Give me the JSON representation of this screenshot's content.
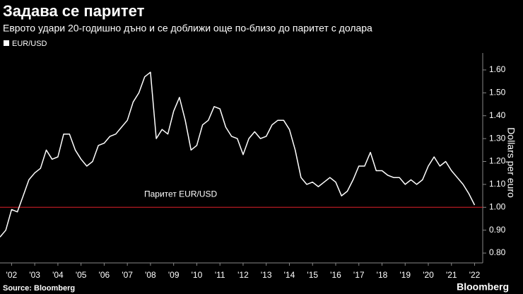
{
  "chart_data": {
    "type": "line",
    "title": "Задава се паритет",
    "subtitle": "Еврото удари 20-годишно дъно и се доближи още по-близо до паритет с долара",
    "y_axis_label": "Dollars per euro",
    "source": "Source: Bloomberg",
    "reference_line": {
      "value": 1.0,
      "label": "Паритет EUR/USD",
      "color": "#e0202a"
    },
    "x": [
      2002.0,
      2002.25,
      2002.5,
      2002.75,
      2003.0,
      2003.25,
      2003.5,
      2003.75,
      2004.0,
      2004.25,
      2004.5,
      2004.75,
      2005.0,
      2005.25,
      2005.5,
      2005.75,
      2006.0,
      2006.25,
      2006.5,
      2006.75,
      2007.0,
      2007.25,
      2007.5,
      2007.75,
      2008.0,
      2008.25,
      2008.5,
      2008.75,
      2009.0,
      2009.25,
      2009.5,
      2009.75,
      2010.0,
      2010.25,
      2010.5,
      2010.75,
      2011.0,
      2011.25,
      2011.5,
      2011.75,
      2012.0,
      2012.25,
      2012.5,
      2012.75,
      2013.0,
      2013.25,
      2013.5,
      2013.75,
      2014.0,
      2014.25,
      2014.5,
      2014.75,
      2015.0,
      2015.25,
      2015.5,
      2015.75,
      2016.0,
      2016.25,
      2016.5,
      2016.75,
      2017.0,
      2017.25,
      2017.5,
      2017.75,
      2018.0,
      2018.25,
      2018.5,
      2018.75,
      2019.0,
      2019.25,
      2019.5,
      2019.75,
      2020.0,
      2020.25,
      2020.5,
      2020.75,
      2021.0,
      2021.25,
      2021.5,
      2021.75,
      2022.0,
      2022.25,
      2022.5
    ],
    "series": [
      {
        "name": "EUR/USD",
        "color": "#ffffff",
        "values": [
          0.87,
          0.9,
          0.99,
          0.98,
          1.05,
          1.12,
          1.15,
          1.17,
          1.25,
          1.21,
          1.22,
          1.32,
          1.32,
          1.25,
          1.21,
          1.18,
          1.2,
          1.27,
          1.28,
          1.31,
          1.32,
          1.35,
          1.38,
          1.46,
          1.5,
          1.57,
          1.59,
          1.3,
          1.34,
          1.32,
          1.42,
          1.48,
          1.38,
          1.25,
          1.27,
          1.36,
          1.38,
          1.44,
          1.43,
          1.35,
          1.31,
          1.3,
          1.23,
          1.3,
          1.33,
          1.3,
          1.31,
          1.36,
          1.38,
          1.38,
          1.34,
          1.25,
          1.13,
          1.1,
          1.11,
          1.09,
          1.11,
          1.13,
          1.11,
          1.05,
          1.07,
          1.12,
          1.18,
          1.18,
          1.24,
          1.16,
          1.16,
          1.14,
          1.13,
          1.13,
          1.1,
          1.12,
          1.1,
          1.12,
          1.18,
          1.22,
          1.18,
          1.2,
          1.16,
          1.13,
          1.1,
          1.06,
          1.01
        ]
      }
    ],
    "xlim": [
      2002.0,
      2022.85
    ],
    "xticks": [
      {
        "value": 2002.5,
        "label": "'02"
      },
      {
        "value": 2003.5,
        "label": "'03"
      },
      {
        "value": 2004.5,
        "label": "'04"
      },
      {
        "value": 2005.5,
        "label": "'05"
      },
      {
        "value": 2006.5,
        "label": "'06"
      },
      {
        "value": 2007.5,
        "label": "'07"
      },
      {
        "value": 2008.5,
        "label": "'08"
      },
      {
        "value": 2009.5,
        "label": "'09"
      },
      {
        "value": 2010.5,
        "label": "'10"
      },
      {
        "value": 2011.5,
        "label": "'11"
      },
      {
        "value": 2012.5,
        "label": "'12"
      },
      {
        "value": 2013.5,
        "label": "'13"
      },
      {
        "value": 2014.5,
        "label": "'14"
      },
      {
        "value": 2015.5,
        "label": "'15"
      },
      {
        "value": 2016.5,
        "label": "'16"
      },
      {
        "value": 2017.5,
        "label": "'17"
      },
      {
        "value": 2018.5,
        "label": "'18"
      },
      {
        "value": 2019.5,
        "label": "'19"
      },
      {
        "value": 2020.5,
        "label": "'20"
      },
      {
        "value": 2021.5,
        "label": "'21"
      },
      {
        "value": 2022.5,
        "label": "'22"
      }
    ],
    "ylim": [
      0.757,
      1.674
    ],
    "yticks": [
      {
        "value": 0.8,
        "label": "0.80"
      },
      {
        "value": 0.9,
        "label": "0.90"
      },
      {
        "value": 1.0,
        "label": "1.00"
      },
      {
        "value": 1.1,
        "label": "1.10"
      },
      {
        "value": 1.2,
        "label": "1.20"
      },
      {
        "value": 1.3,
        "label": "1.30"
      },
      {
        "value": 1.4,
        "label": "1.40"
      },
      {
        "value": 1.5,
        "label": "1.50"
      },
      {
        "value": 1.6,
        "label": "1.60"
      }
    ],
    "grid": false,
    "legend": "top-left"
  },
  "branding": "Bloomberg"
}
